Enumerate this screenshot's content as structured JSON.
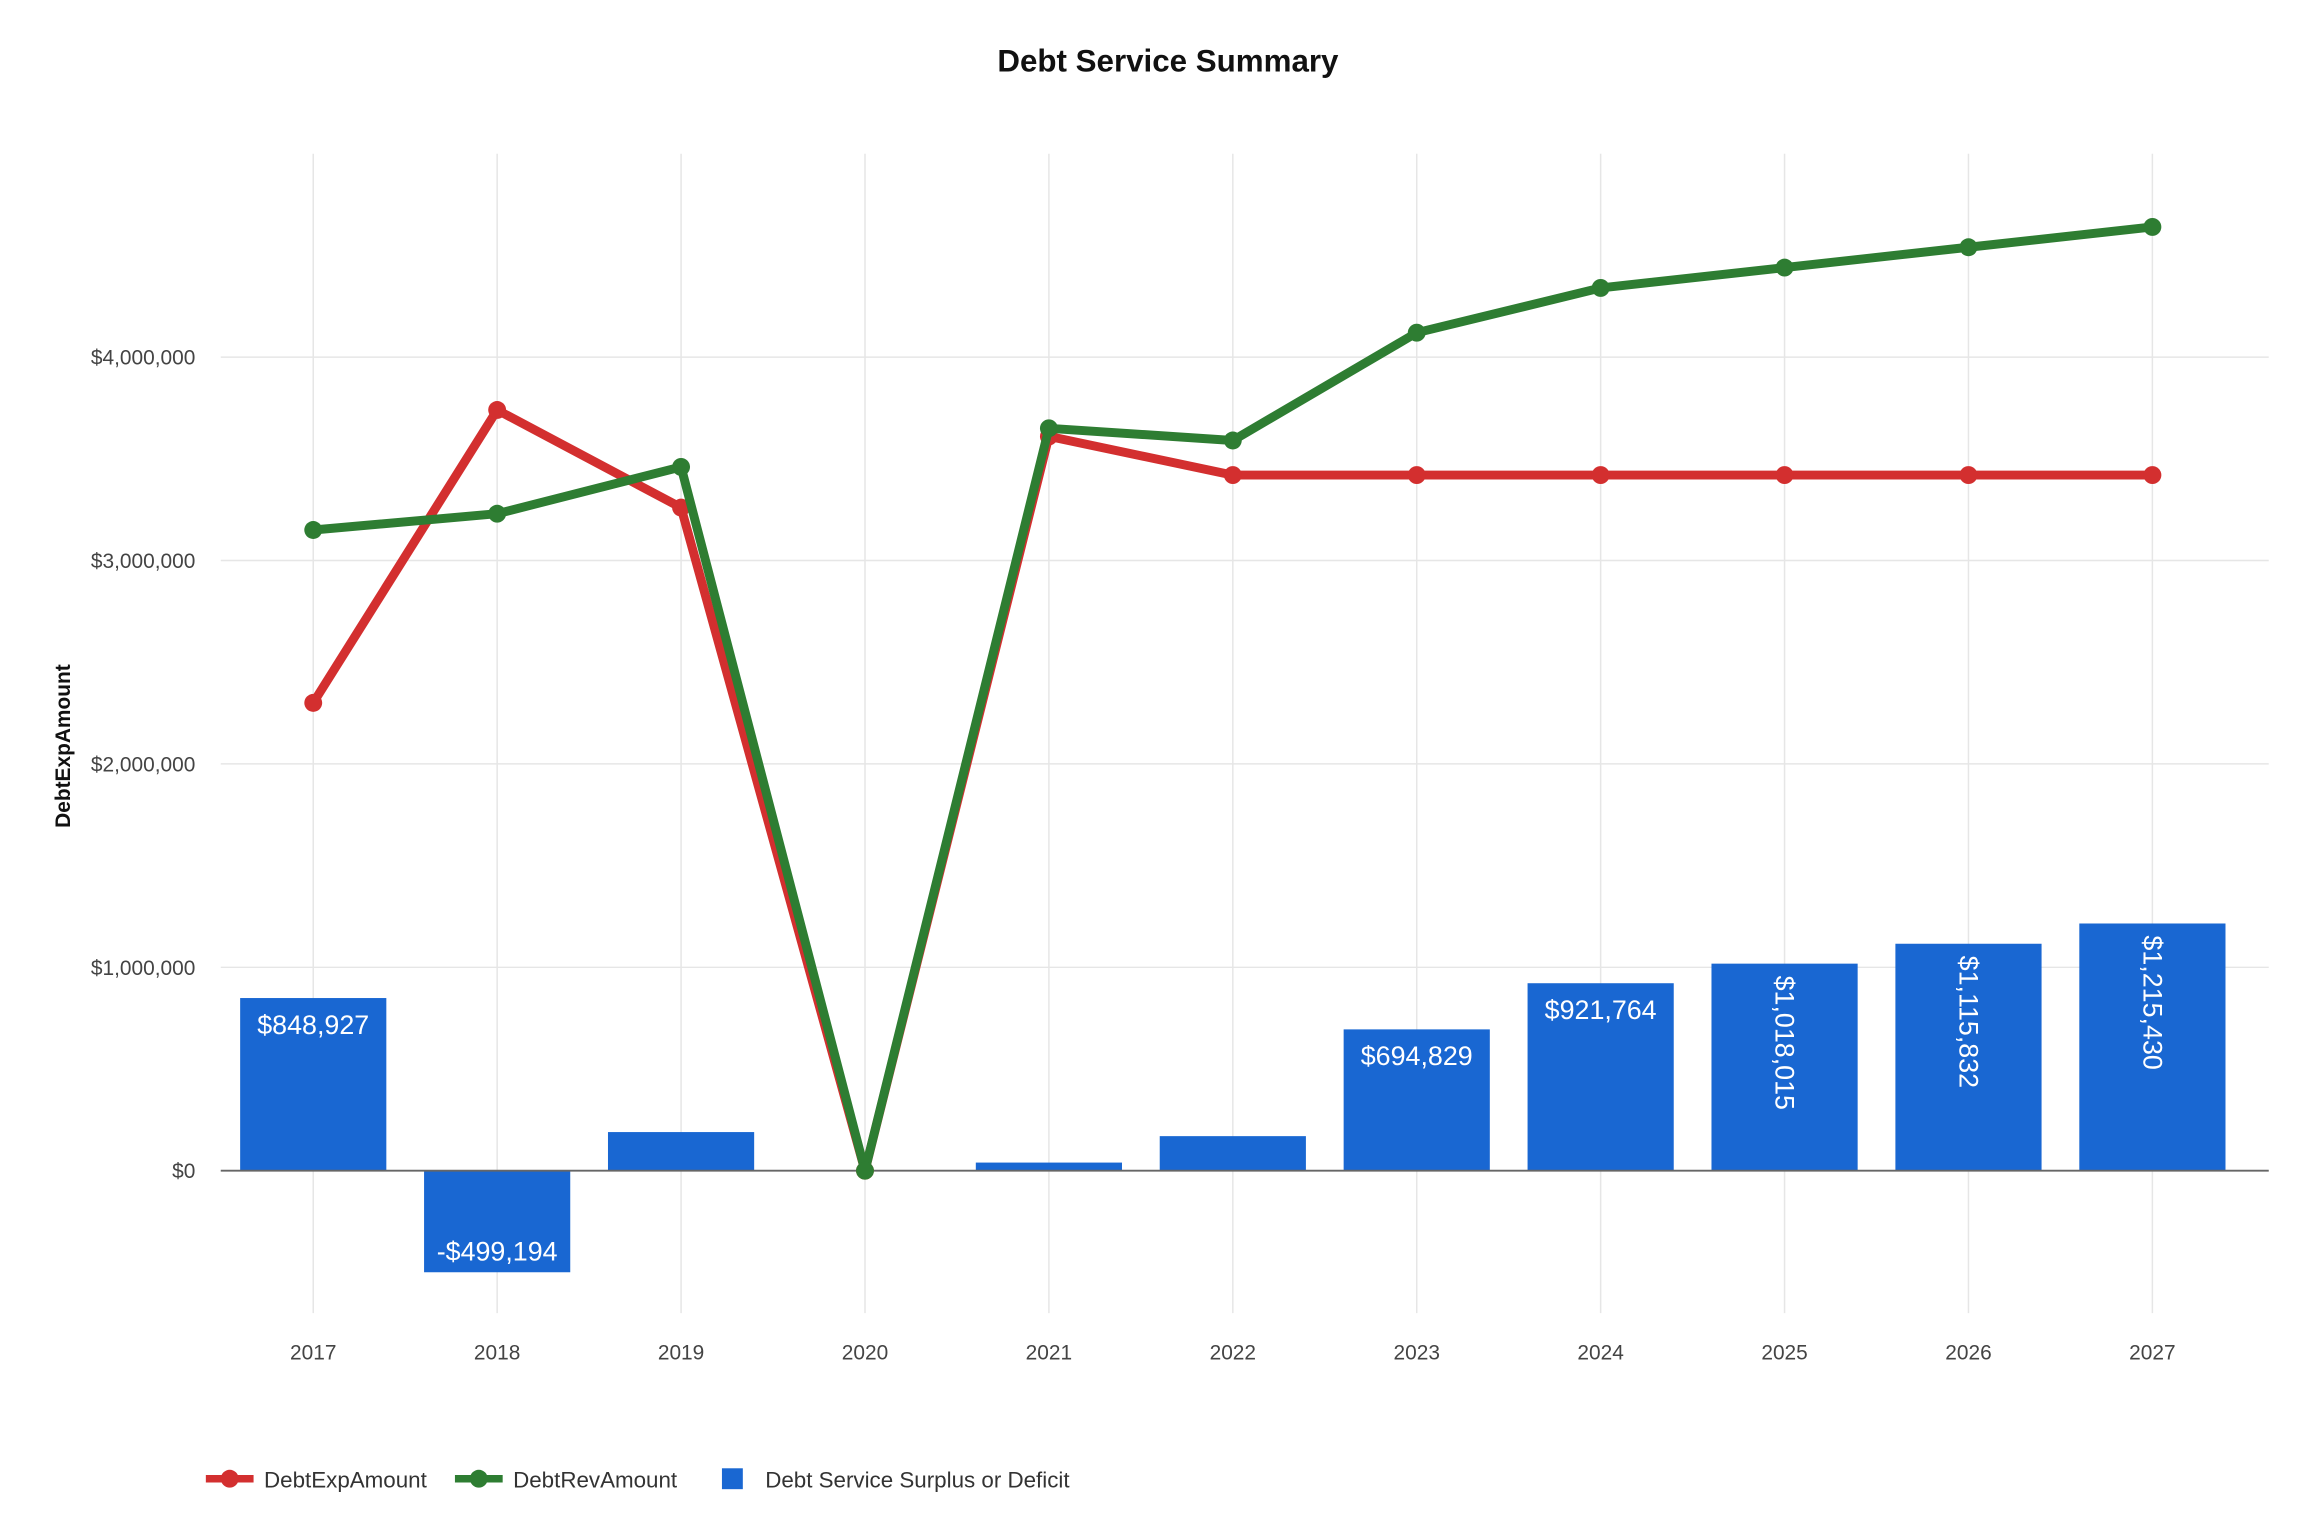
{
  "chart_data": {
    "type": "bar+line",
    "title": "Debt Service Summary",
    "xlabel": "",
    "ylabel": "DebtExpAmount",
    "categories": [
      "2017",
      "2018",
      "2019",
      "2020",
      "2021",
      "2022",
      "2023",
      "2024",
      "2025",
      "2026",
      "2027"
    ],
    "ylim": [
      -700000,
      5000000
    ],
    "yticks": [
      0,
      1000000,
      2000000,
      3000000,
      4000000
    ],
    "ytick_labels": [
      "$0",
      "$1,000,000",
      "$2,000,000",
      "$3,000,000",
      "$4,000,000"
    ],
    "grid": true,
    "legend_position": "bottom-left",
    "series": [
      {
        "name": "DebtExpAmount",
        "type": "line",
        "color": "#d32f2f",
        "values": [
          2300000,
          3740000,
          3260000,
          0,
          3610000,
          3420000,
          3420000,
          3420000,
          3420000,
          3420000,
          3420000
        ]
      },
      {
        "name": "DebtRevAmount",
        "type": "line",
        "color": "#2e7d32",
        "values": [
          3150000,
          3230000,
          3460000,
          0,
          3650000,
          3590000,
          4120000,
          4340000,
          4440000,
          4540000,
          4640000
        ]
      },
      {
        "name": "Debt Service Surplus or Deficit",
        "type": "bar",
        "color": "#1967d2",
        "values": [
          848927,
          -499194,
          190000,
          0,
          40000,
          170000,
          694829,
          921764,
          1018015,
          1115832,
          1215430
        ],
        "labels": [
          "$848,927",
          "-$499,194",
          "",
          "",
          "",
          "",
          "$694,829",
          "$921,764",
          "$1,018,015",
          "$1,115,832",
          "$1,215,430"
        ]
      }
    ]
  }
}
